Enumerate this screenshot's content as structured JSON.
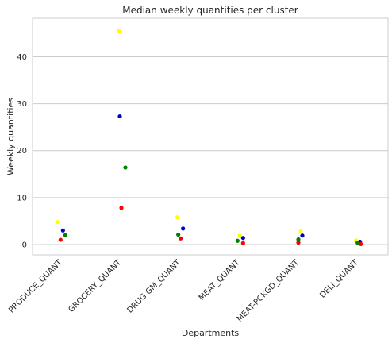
{
  "chart_data": {
    "type": "scatter",
    "title": "Median weekly quantities per cluster",
    "xlabel": "Departments",
    "ylabel": "Weekly quantities",
    "categories": [
      "PRODUCE_QUANT",
      "GROCERY_QUANT",
      "DRUG GM_QUANT",
      "MEAT_QUANT",
      "MEAT-PCKGD_QUANT",
      "DELI_QUANT"
    ],
    "ylim": [
      -2.2,
      48.2
    ],
    "yticks": [
      0,
      10,
      20,
      30,
      40
    ],
    "grid": "horizontal",
    "series": [
      {
        "color": "#ffff00",
        "values": [
          4.8,
          45.5,
          5.8,
          1.9,
          2.8,
          0.9
        ]
      },
      {
        "color": "#0000cc",
        "values": [
          3.0,
          27.3,
          3.4,
          1.4,
          1.9,
          0.6
        ]
      },
      {
        "color": "#008000",
        "values": [
          2.0,
          16.4,
          2.1,
          0.8,
          1.1,
          0.4
        ]
      },
      {
        "color": "#ff0000",
        "values": [
          1.0,
          7.8,
          1.3,
          0.3,
          0.4,
          0.1
        ]
      }
    ]
  }
}
